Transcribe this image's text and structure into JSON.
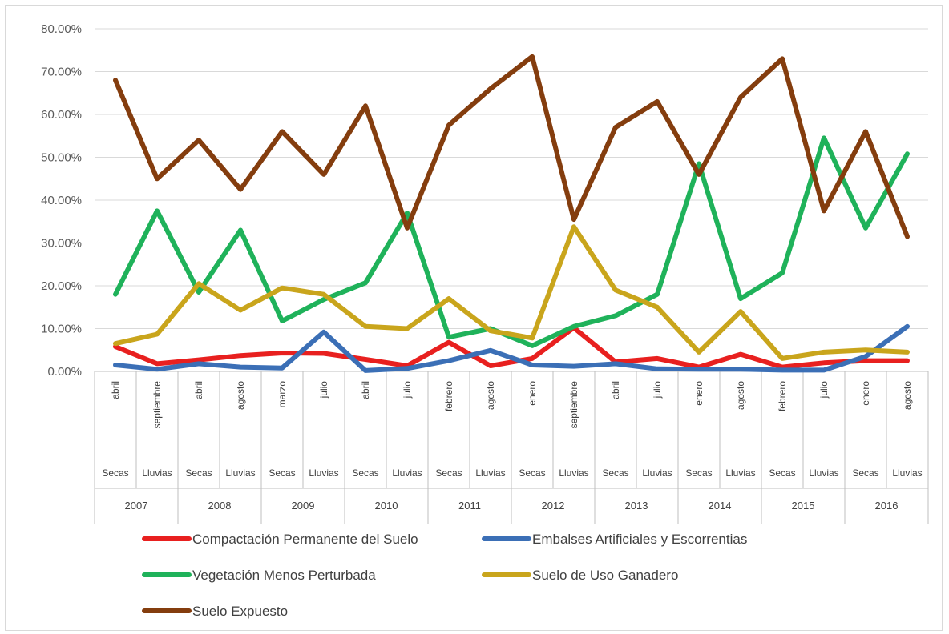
{
  "chart_data": {
    "type": "line",
    "ylim": [
      0,
      80
    ],
    "y_ticks": [
      "0.00%",
      "10.00%",
      "20.00%",
      "30.00%",
      "40.00%",
      "50.00%",
      "60.00%",
      "70.00%",
      "80.00%"
    ],
    "months": [
      "abril",
      "septiembre",
      "abril",
      "agosto",
      "marzo",
      "julio",
      "abril",
      "julio",
      "febrero",
      "agosto",
      "enero",
      "septiembre",
      "abril",
      "julio",
      "enero",
      "agosto",
      "febrero",
      "julio",
      "enero",
      "agosto"
    ],
    "seasons": [
      "Secas",
      "Lluvias",
      "Secas",
      "Lluvias",
      "Secas",
      "Lluvias",
      "Secas",
      "Lluvias",
      "Secas",
      "Lluvias",
      "Secas",
      "Lluvias",
      "Secas",
      "Lluvias",
      "Secas",
      "Lluvias",
      "Secas",
      "Lluvias",
      "Secas",
      "Lluvias"
    ],
    "years": [
      "2007",
      "2008",
      "2009",
      "2010",
      "2011",
      "2012",
      "2013",
      "2014",
      "2015",
      "2016"
    ],
    "grid": true,
    "legend_position": "bottom",
    "series": [
      {
        "name": "Compactación Permanente del Suelo",
        "color": "#e8201f",
        "values": [
          5.8,
          1.8,
          2.7,
          3.7,
          4.3,
          4.2,
          2.8,
          1.3,
          6.8,
          1.3,
          3.0,
          10.2,
          2.2,
          3.0,
          1.0,
          4.0,
          1.0,
          2.0,
          2.5,
          2.5
        ]
      },
      {
        "name": "Embalses Artificiales y Escorrentias",
        "color": "#3b6fb6",
        "values": [
          1.5,
          0.5,
          1.8,
          1.0,
          0.8,
          9.2,
          0.2,
          0.7,
          2.5,
          4.9,
          1.5,
          1.2,
          1.8,
          0.6,
          0.5,
          0.5,
          0.3,
          0.3,
          3.5,
          10.5
        ]
      },
      {
        "name": "Vegetación Menos Perturbada",
        "color": "#1fb25a",
        "values": [
          18.0,
          37.5,
          18.5,
          33.0,
          11.8,
          16.8,
          20.7,
          37.0,
          8.0,
          10.0,
          6.0,
          10.5,
          13.0,
          18.0,
          48.5,
          17.0,
          23.0,
          54.5,
          33.5,
          50.8
        ]
      },
      {
        "name": "Suelo de Uso Ganadero",
        "color": "#c9a51c",
        "values": [
          6.5,
          8.7,
          20.5,
          14.3,
          19.5,
          18.0,
          10.5,
          10.0,
          17.0,
          9.5,
          7.8,
          33.8,
          19.0,
          15.0,
          4.5,
          14.0,
          3.0,
          4.5,
          5.0,
          4.5
        ]
      },
      {
        "name": "Suelo Expuesto",
        "color": "#843d0e",
        "values": [
          68.0,
          45.0,
          54.0,
          42.5,
          56.0,
          46.0,
          62.0,
          33.5,
          57.5,
          66.0,
          73.5,
          35.5,
          57.0,
          63.0,
          46.0,
          64.0,
          73.0,
          37.5,
          56.0,
          31.5
        ]
      }
    ]
  }
}
